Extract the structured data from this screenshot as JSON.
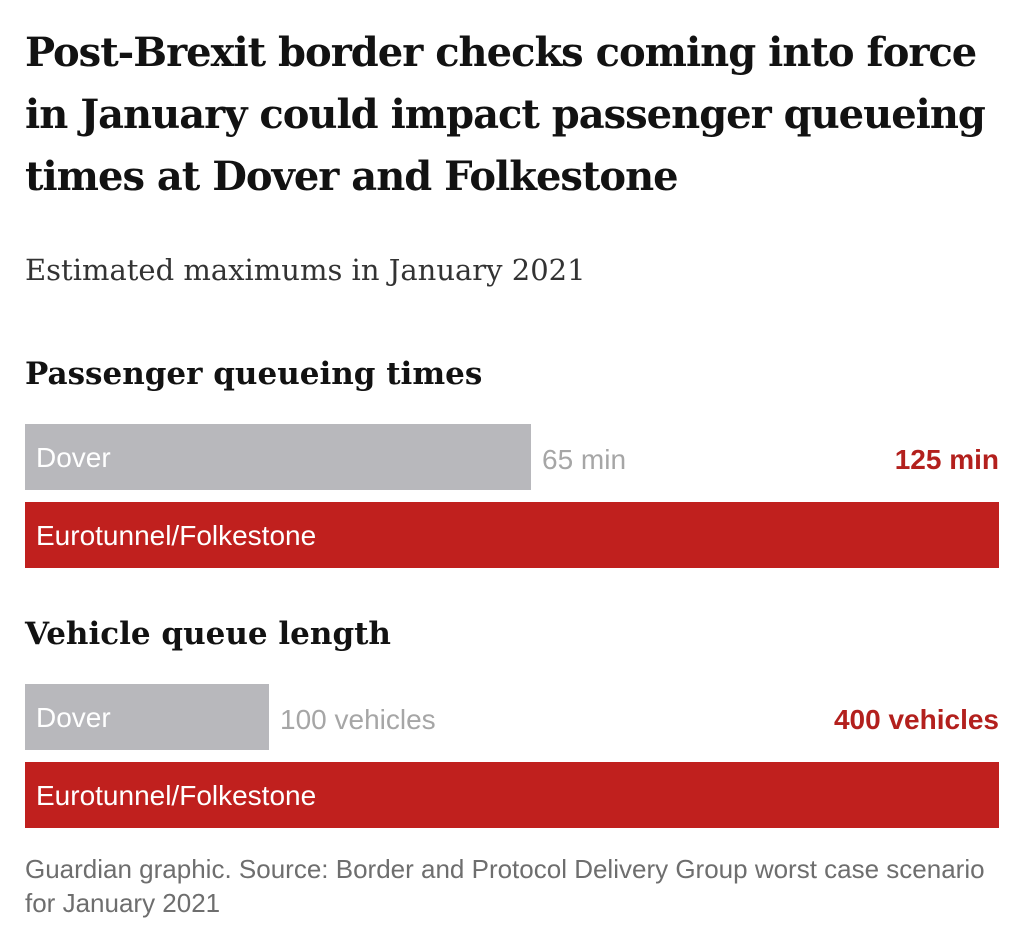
{
  "title": "Post-Brexit border checks coming into force in January could impact passenger queueing times at Dover and Folkestone",
  "subtitle": "Estimated maximums in January 2021",
  "source": "Guardian graphic. Source: Border and Protocol Delivery Group worst case scenario for January 2021",
  "colors": {
    "muted_bar": "#b8b8bc",
    "accent_bar": "#c0201e",
    "muted_text": "#a6a6a6",
    "accent_text": "#b3201d"
  },
  "chart_data": [
    {
      "type": "bar",
      "orientation": "horizontal",
      "title": "Passenger queueing times",
      "categories": [
        "Dover",
        "Eurotunnel/Folkestone"
      ],
      "values": [
        65,
        125
      ],
      "value_labels": [
        "65 min",
        "125 min"
      ],
      "unit": "min",
      "xlim": [
        0,
        125
      ]
    },
    {
      "type": "bar",
      "orientation": "horizontal",
      "title": "Vehicle queue length",
      "categories": [
        "Dover",
        "Eurotunnel/Folkestone"
      ],
      "values": [
        100,
        400
      ],
      "value_labels": [
        "100 vehicles",
        "400 vehicles"
      ],
      "unit": "vehicles",
      "xlim": [
        0,
        400
      ]
    }
  ]
}
